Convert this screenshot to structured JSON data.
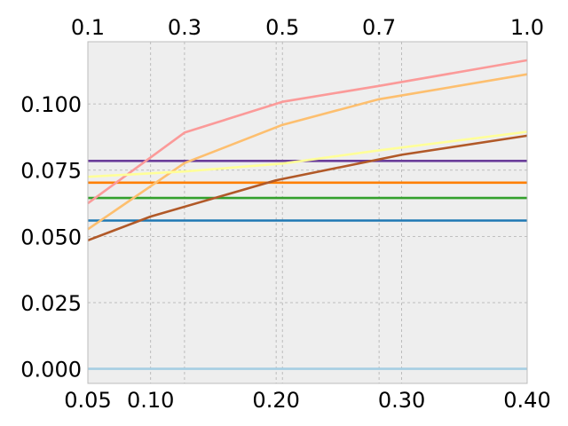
{
  "chart_data": {
    "type": "line",
    "title": "",
    "xlabel": "",
    "ylabel": "",
    "grid": true,
    "background": "#eeeeee",
    "xlim": [
      0.05,
      0.4
    ],
    "ylim": [
      -0.0055,
      0.1235
    ],
    "x_ticks": [
      0.05,
      0.1,
      0.2,
      0.3,
      0.4
    ],
    "x_tick_labels": [
      "0.05",
      "0.10",
      "0.20",
      "0.30",
      "0.40"
    ],
    "y_ticks": [
      0.0,
      0.025,
      0.05,
      0.075,
      0.1
    ],
    "y_tick_labels": [
      "0.000",
      "0.025",
      "0.050",
      "0.075",
      "0.100"
    ],
    "top_axis": {
      "ticks": [
        0.05,
        0.127,
        0.205,
        0.282,
        0.4
      ],
      "tick_labels": [
        "0.1",
        "0.3",
        "0.5",
        "0.7",
        "1.0"
      ]
    },
    "series": [
      {
        "color": "#a6cee3",
        "x": [
          0.05,
          0.4
        ],
        "y": [
          0.0,
          0.0
        ]
      },
      {
        "color": "#1f78b4",
        "x": [
          0.05,
          0.4
        ],
        "y": [
          0.056,
          0.056
        ]
      },
      {
        "color": "#33a02c",
        "x": [
          0.05,
          0.4
        ],
        "y": [
          0.0645,
          0.0645
        ]
      },
      {
        "color": "#ff7f00",
        "x": [
          0.05,
          0.4
        ],
        "y": [
          0.0703,
          0.0703
        ]
      },
      {
        "color": "#6a3d9a",
        "x": [
          0.05,
          0.4
        ],
        "y": [
          0.0785,
          0.0785
        ]
      },
      {
        "color": "#fb9a99",
        "x": [
          0.05,
          0.127,
          0.205,
          0.282,
          0.4
        ],
        "y": [
          0.0625,
          0.0892,
          0.1008,
          0.1068,
          0.1165
        ]
      },
      {
        "color": "#fdbf6f",
        "x": [
          0.05,
          0.127,
          0.205,
          0.282,
          0.4
        ],
        "y": [
          0.0527,
          0.0777,
          0.0921,
          0.1018,
          0.1112
        ]
      },
      {
        "color": "#ffff99",
        "x": [
          0.05,
          0.127,
          0.205,
          0.282,
          0.4
        ],
        "y": [
          0.0725,
          0.0745,
          0.0775,
          0.0825,
          0.0895
        ]
      },
      {
        "color": "#b15928",
        "x": [
          0.05,
          0.1,
          0.2,
          0.3,
          0.4
        ],
        "y": [
          0.0485,
          0.0575,
          0.0712,
          0.0808,
          0.088
        ]
      }
    ]
  }
}
